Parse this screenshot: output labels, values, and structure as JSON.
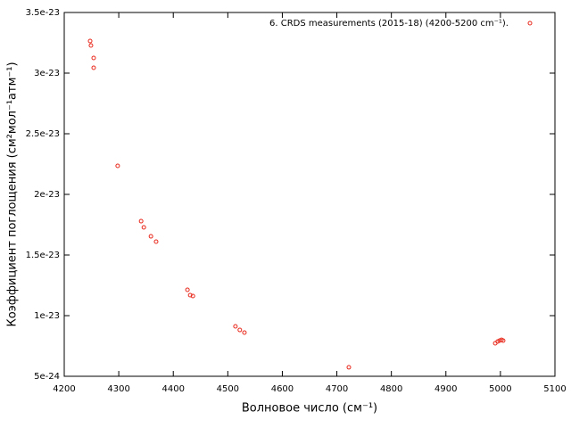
{
  "chart_data": {
    "type": "scatter",
    "xlabel": "Волновое число (см⁻¹)",
    "ylabel": "Коэффициент поглощения (см²мол⁻¹атм⁻¹)",
    "xlim": [
      4200,
      5100
    ],
    "xticks": [
      4200,
      4300,
      4400,
      4500,
      4600,
      4700,
      4800,
      4900,
      5000,
      5100
    ],
    "ylim": [
      5e-24,
      3.5e-23
    ],
    "yticks": [
      5e-24,
      1e-23,
      1.5e-23,
      2e-23,
      2.5e-23,
      3e-23,
      3.5e-23
    ],
    "legend": "top-right",
    "series": [
      {
        "name": "6. CRDS measurements (2015-18) (4200-5200 cm⁻¹).",
        "color": "#e8291c",
        "x": [
          4247.5,
          4249,
          4254,
          4254,
          4298,
          4341,
          4346,
          4359,
          4368.5,
          4426,
          4431,
          4436,
          4514,
          4522,
          4530.5,
          4722,
          4990.5,
          4995,
          4998.5,
          5002,
          5005
        ],
        "values": [
          3.265e-23,
          3.228e-23,
          3.125e-23,
          3.044e-23,
          2.235e-23,
          1.779e-23,
          1.728e-23,
          1.654e-23,
          1.61e-23,
          1.213e-23,
          1.169e-23,
          1.162e-23,
          9.12e-24,
          8.82e-24,
          8.6e-24,
          5.74e-24,
          7.72e-24,
          7.87e-24,
          7.94e-24,
          8.01e-24,
          7.94e-24
        ]
      }
    ]
  }
}
